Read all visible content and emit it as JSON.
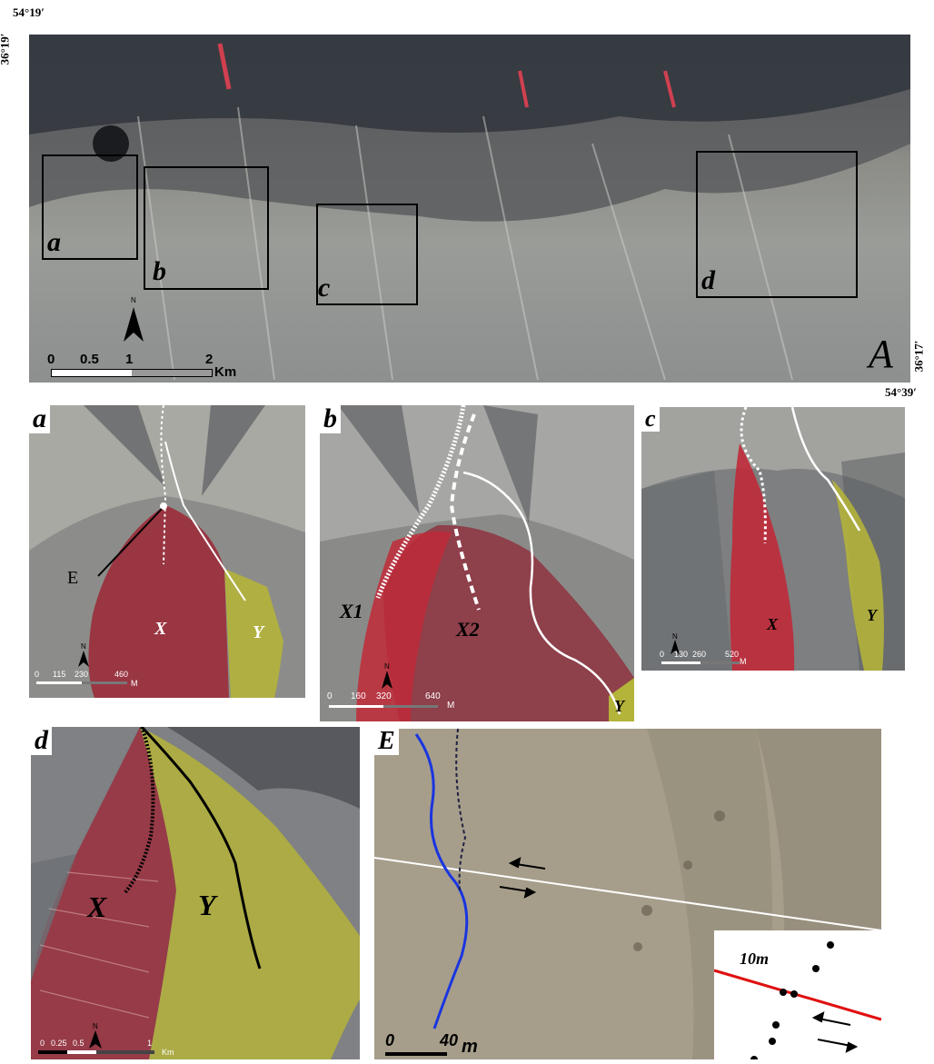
{
  "coords": {
    "top_left_lon": "54°19′",
    "top_left_lat": "36°19′",
    "bottom_right_lat": "36°17′",
    "bottom_right_lon": "54°39′"
  },
  "main_panel": {
    "label": "A",
    "boxes": [
      "a",
      "b",
      "c",
      "d"
    ],
    "north": "N",
    "scale": {
      "ticks": [
        "0",
        "0.5",
        "1",
        "2"
      ],
      "unit": "Km"
    }
  },
  "panel_a": {
    "label": "a",
    "point_label": "E",
    "fans": [
      "X",
      "Y"
    ],
    "north": "N",
    "scale": {
      "ticks": [
        "0",
        "115",
        "230",
        "460"
      ],
      "unit": "M"
    }
  },
  "panel_b": {
    "label": "b",
    "fans": [
      "X1",
      "X2",
      "Y"
    ],
    "north": "N",
    "scale": {
      "ticks": [
        "0",
        "160",
        "320",
        "640"
      ],
      "unit": "M"
    }
  },
  "panel_c": {
    "label": "c",
    "fans": [
      "X",
      "Y"
    ],
    "north": "N",
    "scale": {
      "ticks": [
        "0",
        "130",
        "260",
        "520"
      ],
      "unit": "M"
    }
  },
  "panel_d": {
    "label": "d",
    "fans": [
      "X",
      "Y"
    ],
    "north": "N",
    "scale": {
      "ticks": [
        "0",
        "0.25",
        "0.5",
        "1"
      ],
      "unit": "Km"
    }
  },
  "panel_e": {
    "label": "E",
    "scale": {
      "ticks": [
        "0",
        "40"
      ],
      "unit": "m"
    },
    "inset_label": "10m"
  },
  "colors": {
    "fan_x": "#9a2f3c",
    "fan_y": "#b4b33a",
    "terrain": "#8a8a88",
    "fault_red": "#e01010",
    "channel_blue": "#1a35e0"
  }
}
